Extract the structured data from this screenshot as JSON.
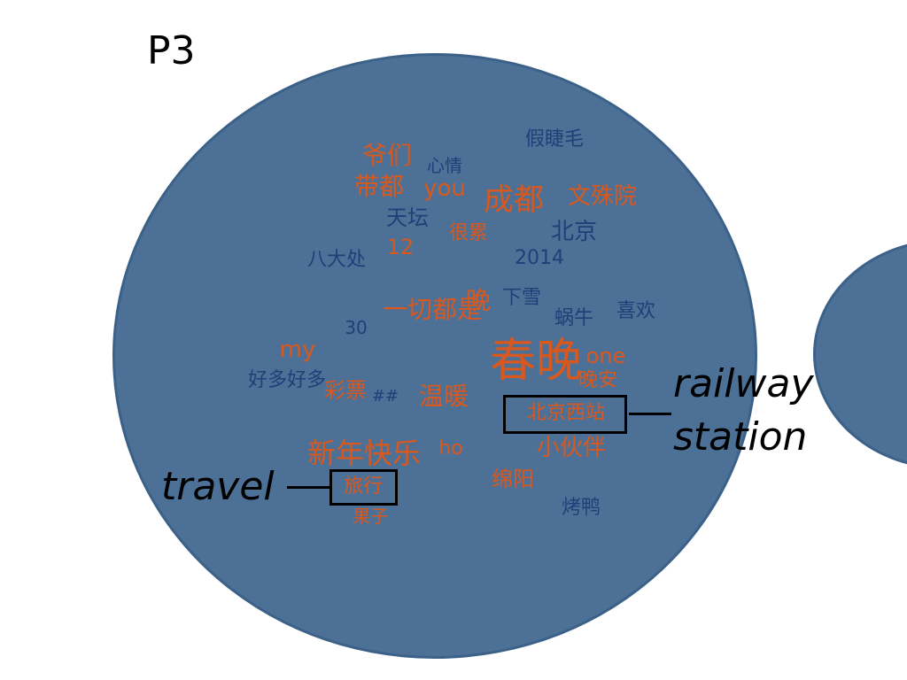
{
  "panel_label": "P3",
  "colors": {
    "circle": "#4d7196",
    "orange": "#d8581e",
    "blue": "#1f3f78"
  },
  "words": [
    {
      "text": "爷们",
      "color": "orange"
    },
    {
      "text": "心情",
      "color": "blue"
    },
    {
      "text": "假睫毛",
      "color": "blue"
    },
    {
      "text": "带都",
      "color": "orange"
    },
    {
      "text": "you",
      "color": "orange"
    },
    {
      "text": "成都",
      "color": "orange"
    },
    {
      "text": "文殊院",
      "color": "orange"
    },
    {
      "text": "天坛",
      "color": "blue"
    },
    {
      "text": "北京",
      "color": "blue"
    },
    {
      "text": "很累",
      "color": "orange"
    },
    {
      "text": "12",
      "color": "orange"
    },
    {
      "text": "八大处",
      "color": "blue"
    },
    {
      "text": "2014",
      "color": "blue"
    },
    {
      "text": "一切都是",
      "color": "orange"
    },
    {
      "text": "晚",
      "color": "orange"
    },
    {
      "text": "下雪",
      "color": "blue"
    },
    {
      "text": "蜗牛",
      "color": "blue"
    },
    {
      "text": "喜欢",
      "color": "blue"
    },
    {
      "text": "30",
      "color": "blue"
    },
    {
      "text": "my",
      "color": "orange"
    },
    {
      "text": "春晚",
      "color": "orange"
    },
    {
      "text": "one",
      "color": "orange"
    },
    {
      "text": "好多好多",
      "color": "blue"
    },
    {
      "text": "彩票",
      "color": "orange"
    },
    {
      "text": "##",
      "color": "blue"
    },
    {
      "text": "温暖",
      "color": "orange"
    },
    {
      "text": "晚安",
      "color": "orange"
    },
    {
      "text": "北京西站",
      "color": "orange"
    },
    {
      "text": "小伙伴",
      "color": "orange"
    },
    {
      "text": "新年快乐",
      "color": "orange"
    },
    {
      "text": "ho",
      "color": "orange"
    },
    {
      "text": "绵阳",
      "color": "orange"
    },
    {
      "text": "旅行",
      "color": "orange"
    },
    {
      "text": "烤鸭",
      "color": "blue"
    },
    {
      "text": "果子",
      "color": "orange"
    }
  ],
  "annotations": [
    {
      "label_lines": [
        "railway",
        "station"
      ],
      "target_word": "北京西站"
    },
    {
      "label_lines": [
        "travel"
      ],
      "target_word": "旅行"
    }
  ]
}
